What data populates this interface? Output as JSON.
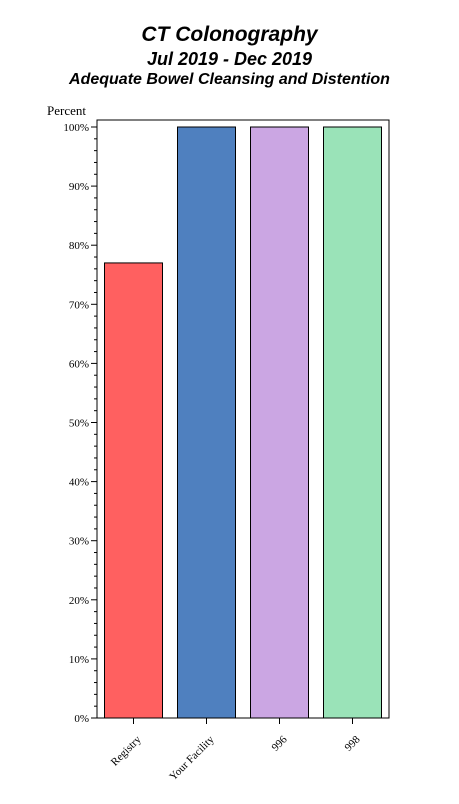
{
  "chart_data": {
    "type": "bar",
    "title": "CT Colonography",
    "subtitle": "Jul 2019 - Dec 2019",
    "subtitle2": "Adequate Bowel Cleansing and Distention",
    "ylabel": "Percent",
    "xlabel": "",
    "ylim": [
      0,
      100
    ],
    "yticks": [
      "0%",
      "10%",
      "20%",
      "30%",
      "40%",
      "50%",
      "60%",
      "70%",
      "80%",
      "90%",
      "100%"
    ],
    "categories": [
      "Registry",
      "Your Facility",
      "996",
      "998"
    ],
    "values": [
      77,
      100,
      100,
      100
    ],
    "colors": [
      "#ff6060",
      "#4f80bf",
      "#cba6e3",
      "#9ae3b8"
    ],
    "grid": false
  }
}
